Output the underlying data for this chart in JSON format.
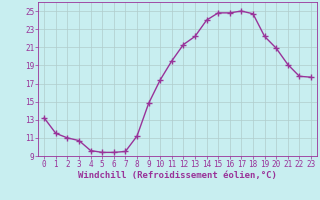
{
  "x": [
    0,
    1,
    2,
    3,
    4,
    5,
    6,
    7,
    8,
    9,
    10,
    11,
    12,
    13,
    14,
    15,
    16,
    17,
    18,
    19,
    20,
    21,
    22,
    23
  ],
  "y": [
    13.2,
    11.5,
    11.0,
    10.7,
    9.6,
    9.4,
    9.4,
    9.5,
    11.2,
    14.8,
    17.4,
    19.5,
    21.3,
    22.2,
    24.0,
    24.8,
    24.8,
    25.0,
    24.7,
    22.2,
    20.9,
    19.1,
    17.8,
    17.7
  ],
  "color": "#993399",
  "bg_color": "#c8eef0",
  "grid_color": "#b0cccc",
  "xlabel": "Windchill (Refroidissement éolien,°C)",
  "ylim": [
    9,
    26
  ],
  "xlim": [
    -0.5,
    23.5
  ],
  "yticks": [
    9,
    11,
    13,
    15,
    17,
    19,
    21,
    23,
    25
  ],
  "xticks": [
    0,
    1,
    2,
    3,
    4,
    5,
    6,
    7,
    8,
    9,
    10,
    11,
    12,
    13,
    14,
    15,
    16,
    17,
    18,
    19,
    20,
    21,
    22,
    23
  ],
  "marker": "+",
  "linewidth": 1.0,
  "markersize": 4,
  "xlabel_fontsize": 6.5,
  "tick_fontsize": 5.5,
  "xlabel_color": "#993399",
  "tick_color": "#993399",
  "axis_color": "#993399",
  "spine_color": "#993399"
}
